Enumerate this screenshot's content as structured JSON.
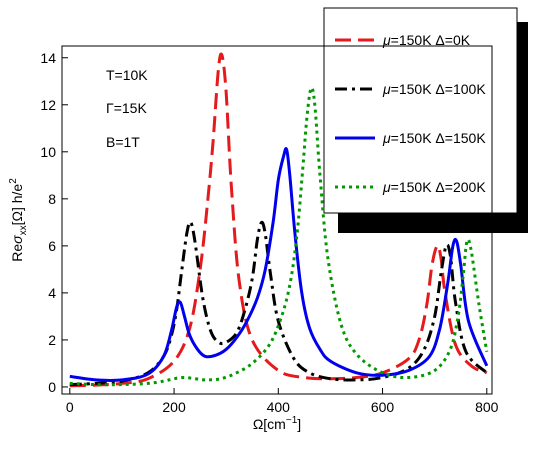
{
  "chart_data": {
    "type": "line",
    "title": "",
    "xlabel": {
      "base": "Ω[cm",
      "sup": "−1",
      "close": "]"
    },
    "ylabel": {
      "pre": "Re",
      "sigma": "σ",
      "sub": "xx",
      "mid": "[Ω] h/e",
      "sup": "2"
    },
    "xlim": [
      -15,
      810
    ],
    "ylim": [
      -0.3,
      14.5
    ],
    "xticks": [
      0,
      200,
      400,
      600,
      800
    ],
    "yticks": [
      0,
      2,
      4,
      6,
      8,
      10,
      12,
      14
    ],
    "grid": false,
    "legend_position": "top-right",
    "annotations": [
      "T=10K",
      "Γ=15K",
      "B=1T"
    ],
    "series": [
      {
        "name": "μ=150K  Δ=0K",
        "color": "#e41a1c",
        "dash": "dashed",
        "x": [
          0,
          50,
          100,
          150,
          200,
          230,
          250,
          265,
          275,
          285,
          292,
          300,
          310,
          325,
          350,
          400,
          450,
          500,
          550,
          600,
          650,
          670,
          685,
          695,
          705,
          712,
          720,
          740,
          770,
          800
        ],
        "y": [
          0.05,
          0.08,
          0.15,
          0.35,
          1.1,
          2.5,
          5.0,
          8.0,
          10.5,
          13.5,
          14.1,
          12.5,
          8.5,
          4.5,
          2.0,
          0.7,
          0.4,
          0.35,
          0.4,
          0.6,
          1.2,
          2.0,
          3.5,
          5.2,
          6.0,
          5.5,
          4.0,
          1.8,
          0.9,
          0.6
        ]
      },
      {
        "name": "μ=150K  Δ=100K",
        "color": "#000000",
        "dash": "dashdot",
        "x": [
          0,
          50,
          100,
          150,
          180,
          195,
          205,
          215,
          225,
          232,
          240,
          255,
          270,
          285,
          300,
          320,
          335,
          350,
          360,
          368,
          375,
          385,
          400,
          430,
          460,
          500,
          550,
          600,
          650,
          680,
          700,
          712,
          722,
          730,
          740,
          760,
          800
        ],
        "y": [
          0.1,
          0.15,
          0.25,
          0.6,
          1.3,
          2.2,
          3.3,
          5.0,
          6.6,
          7.0,
          6.2,
          3.8,
          2.4,
          1.9,
          1.9,
          2.3,
          3.2,
          4.6,
          6.3,
          7.0,
          6.5,
          4.8,
          2.8,
          1.2,
          0.6,
          0.35,
          0.3,
          0.4,
          0.8,
          1.6,
          3.0,
          4.8,
          6.0,
          5.6,
          3.6,
          1.5,
          0.6
        ]
      },
      {
        "name": "μ=150K  Δ=150K",
        "color": "#0000ee",
        "dash": "solid",
        "x": [
          0,
          50,
          100,
          150,
          180,
          195,
          205,
          212,
          220,
          230,
          245,
          260,
          280,
          300,
          320,
          340,
          360,
          375,
          390,
          400,
          410,
          416,
          422,
          432,
          445,
          460,
          480,
          500,
          550,
          600,
          650,
          690,
          710,
          725,
          735,
          742,
          750,
          765,
          800
        ],
        "y": [
          0.45,
          0.3,
          0.3,
          0.55,
          1.3,
          2.4,
          3.4,
          3.6,
          3.0,
          2.2,
          1.6,
          1.3,
          1.35,
          1.6,
          2.1,
          2.8,
          3.8,
          5.0,
          7.0,
          8.8,
          9.8,
          10.1,
          9.0,
          6.5,
          4.0,
          2.5,
          1.6,
          1.1,
          0.6,
          0.5,
          0.7,
          1.3,
          2.5,
          4.4,
          6.0,
          6.2,
          5.2,
          2.8,
          0.9
        ]
      },
      {
        "name": "μ=150K  Δ=200K",
        "color": "#009900",
        "dash": "dotted",
        "x": [
          0,
          50,
          100,
          150,
          180,
          200,
          220,
          240,
          260,
          290,
          320,
          350,
          380,
          400,
          420,
          435,
          447,
          455,
          463,
          470,
          480,
          495,
          520,
          550,
          600,
          650,
          700,
          730,
          745,
          755,
          762,
          770,
          785,
          800
        ],
        "y": [
          0.15,
          0.1,
          0.1,
          0.15,
          0.25,
          0.35,
          0.4,
          0.35,
          0.3,
          0.35,
          0.6,
          1.0,
          1.7,
          2.6,
          4.1,
          6.3,
          9.3,
          11.5,
          12.7,
          12.0,
          9.0,
          5.5,
          2.7,
          1.4,
          0.6,
          0.4,
          0.7,
          1.6,
          3.0,
          4.8,
          6.2,
          5.8,
          3.5,
          1.5
        ]
      }
    ]
  }
}
